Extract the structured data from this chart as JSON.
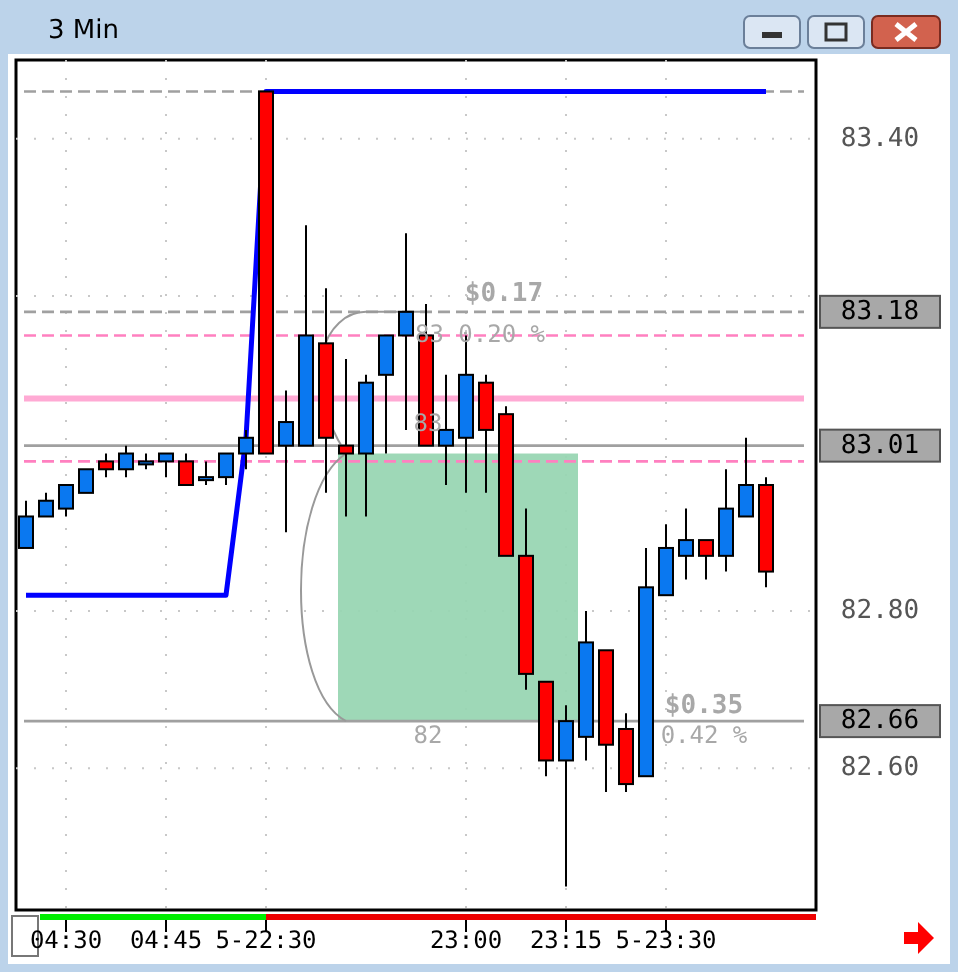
{
  "chart_data": {
    "type": "candlestick",
    "title": "3 Min",
    "categories": [
      null,
      null,
      "04:30",
      null,
      null,
      null,
      null,
      "04:45",
      null,
      null,
      null,
      null,
      "5-22:30",
      null,
      null,
      null,
      null,
      null,
      null,
      null,
      null,
      null,
      "23:00",
      null,
      null,
      null,
      null,
      "23:15",
      null,
      null,
      null,
      null,
      "5-23:30",
      null,
      null,
      null,
      null,
      null
    ],
    "ohlc": [
      [
        82.88,
        82.94,
        82.88,
        82.92
      ],
      [
        82.92,
        82.95,
        82.92,
        82.94
      ],
      [
        82.93,
        82.96,
        82.92,
        82.96
      ],
      [
        82.95,
        82.98,
        82.95,
        82.98
      ],
      [
        82.99,
        83.0,
        82.97,
        82.98
      ],
      [
        82.98,
        83.01,
        82.97,
        83.0
      ],
      [
        82.99,
        83.0,
        82.98,
        82.99
      ],
      [
        82.99,
        83.0,
        82.97,
        83.0
      ],
      [
        82.99,
        83.0,
        82.96,
        82.96
      ],
      [
        82.97,
        82.99,
        82.96,
        82.97
      ],
      [
        82.97,
        83.0,
        82.96,
        83.0
      ],
      [
        83.0,
        83.03,
        82.98,
        83.02
      ],
      [
        83.46,
        83.46,
        83.0,
        83.0
      ],
      [
        83.01,
        83.08,
        82.9,
        83.04
      ],
      [
        83.01,
        83.29,
        83.01,
        83.15
      ],
      [
        83.14,
        83.21,
        82.95,
        83.02
      ],
      [
        83.01,
        83.12,
        82.92,
        83.0
      ],
      [
        83.0,
        83.1,
        82.92,
        83.09
      ],
      [
        83.1,
        83.15,
        83.0,
        83.15
      ],
      [
        83.15,
        83.28,
        83.03,
        83.18
      ],
      [
        83.15,
        83.19,
        83.01,
        83.01
      ],
      [
        83.01,
        83.1,
        82.96,
        83.03
      ],
      [
        83.02,
        83.15,
        82.95,
        83.1
      ],
      [
        83.09,
        83.1,
        82.95,
        83.03
      ],
      [
        83.05,
        83.06,
        82.87,
        82.87
      ],
      [
        82.87,
        82.93,
        82.7,
        82.72
      ],
      [
        82.71,
        82.71,
        82.59,
        82.61
      ],
      [
        82.61,
        82.68,
        82.45,
        82.66
      ],
      [
        82.64,
        82.8,
        82.61,
        82.76
      ],
      [
        82.75,
        82.75,
        82.57,
        82.63
      ],
      [
        82.65,
        82.67,
        82.57,
        82.58
      ],
      [
        82.59,
        82.88,
        82.59,
        82.83
      ],
      [
        82.82,
        82.91,
        82.82,
        82.88
      ],
      [
        82.87,
        82.93,
        82.84,
        82.89
      ],
      [
        82.89,
        82.89,
        82.84,
        82.87
      ],
      [
        82.87,
        82.98,
        82.85,
        82.93
      ],
      [
        82.92,
        83.02,
        82.92,
        82.96
      ],
      [
        82.96,
        82.97,
        82.83,
        82.85
      ]
    ],
    "series": [
      {
        "type": "line",
        "color": "#0000ff",
        "values": [
          82.82,
          82.82,
          82.82,
          82.82,
          82.82,
          82.82,
          82.82,
          82.82,
          82.82,
          82.82,
          82.82,
          83.02,
          83.46,
          83.46,
          83.46,
          83.46,
          83.46,
          83.46,
          83.46,
          83.46,
          83.46,
          83.46,
          83.46,
          83.46,
          83.46,
          83.46,
          83.46,
          83.46,
          83.46,
          83.46,
          83.46,
          83.46,
          83.46,
          83.46,
          83.46,
          83.46,
          83.46,
          83.46
        ]
      }
    ],
    "ylim": [
      82.42,
      83.5
    ],
    "yticks": [
      {
        "value": 82.6,
        "label": "82.60"
      },
      {
        "value": 82.8,
        "label": "82.80"
      },
      {
        "value": 83.2,
        "label": null
      },
      {
        "value": 83.4,
        "label": "83.40"
      }
    ],
    "grid": true,
    "ref_lines": [
      {
        "axis": "y",
        "value": 83.46,
        "color": "#a0a0a0",
        "line_style": "dashed"
      },
      {
        "axis": "y",
        "value": 83.15,
        "color": "#ff80c0",
        "line_style": "dashed"
      },
      {
        "axis": "y",
        "value": 83.07,
        "color": "#ffaad4",
        "line_style": "solid"
      },
      {
        "axis": "y",
        "value": 82.99,
        "color": "#ff80c0",
        "line_style": "dashed"
      },
      {
        "axis": "y",
        "value": 83.18,
        "label": "83.18",
        "color": "#a0a0a0",
        "line_style": "dashed"
      },
      {
        "axis": "y",
        "value": 83.01,
        "label": "83.01",
        "color": "#a0a0a0",
        "line_style": "solid"
      },
      {
        "axis": "y",
        "value": 82.66,
        "label": "82.66",
        "color": "#a0a0a0",
        "line_style": "solid"
      }
    ],
    "bands": [
      {
        "axis": "y",
        "from": 82.66,
        "to": 83.0,
        "color": "#99d6b3"
      }
    ],
    "annotations": [
      "$0.17",
      {
        "text": "83  0.20 %",
        "y": 83.15
      },
      "83",
      "82",
      "$0.35",
      "0.42 %"
    ]
  }
}
